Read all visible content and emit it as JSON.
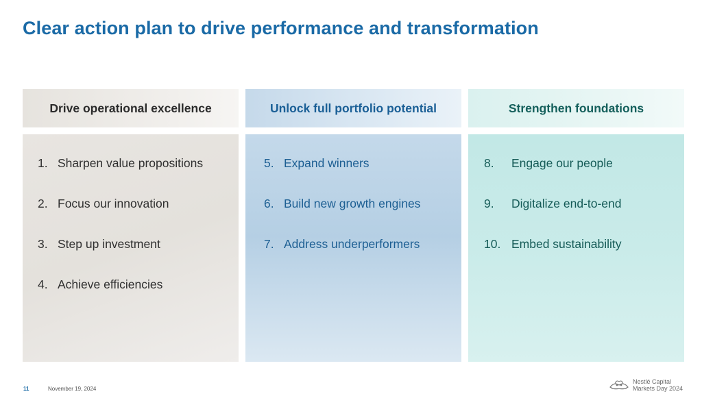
{
  "title": "Clear action plan to drive performance and transformation",
  "columns": [
    {
      "header": "Drive operational excellence",
      "items": [
        {
          "num": "1.",
          "text": "Sharpen value propositions"
        },
        {
          "num": "2.",
          "text": "Focus our innovation"
        },
        {
          "num": "3.",
          "text": "Step up investment"
        },
        {
          "num": "4.",
          "text": "Achieve efficiencies"
        }
      ]
    },
    {
      "header": "Unlock full portfolio potential",
      "items": [
        {
          "num": "5.",
          "text": "Expand winners"
        },
        {
          "num": "6.",
          "text": "Build new growth engines"
        },
        {
          "num": "7.",
          "text": "Address underperformers"
        }
      ]
    },
    {
      "header": "Strengthen foundations",
      "items": [
        {
          "num": "8.",
          "text": "Engage our people"
        },
        {
          "num": "9.",
          "text": "Digitalize end-to-end"
        },
        {
          "num": "10.",
          "text": "Embed sustainability"
        }
      ]
    }
  ],
  "footer": {
    "page_number": "11",
    "date": "November 19, 2024",
    "brand_line1": "Nestlé Capital",
    "brand_line2": "Markets Day 2024",
    "logo_icon": "nestle-nest-logo-icon"
  }
}
